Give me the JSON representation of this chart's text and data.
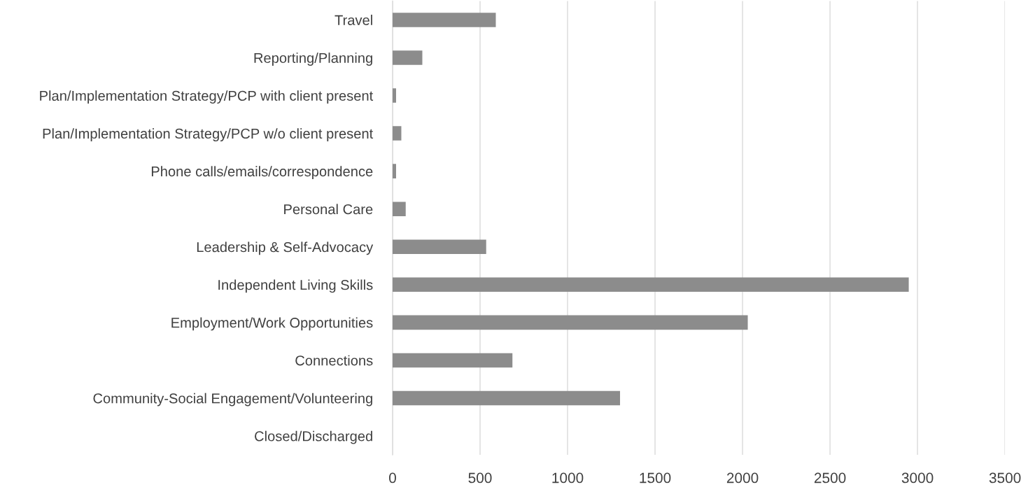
{
  "chart_data": {
    "type": "bar",
    "orientation": "horizontal",
    "categories": [
      "Travel",
      "Reporting/Planning",
      "Plan/Implementation Strategy/PCP with client present",
      "Plan/Implementation Strategy/PCP w/o client present",
      "Phone calls/emails/correspondence",
      "Personal Care",
      "Leadership & Self-Advocacy",
      "Independent Living Skills",
      "Employment/Work Opportunities",
      "Connections",
      "Community-Social Engagement/Volunteering",
      "Closed/Discharged"
    ],
    "values": [
      590,
      170,
      20,
      50,
      20,
      75,
      535,
      2950,
      2030,
      685,
      1300,
      0
    ],
    "color": "#8c8c8c",
    "xlim": [
      0,
      3500
    ],
    "xticks": [
      0,
      500,
      1000,
      1500,
      2000,
      2500,
      3000,
      3500
    ],
    "grid": "x"
  }
}
